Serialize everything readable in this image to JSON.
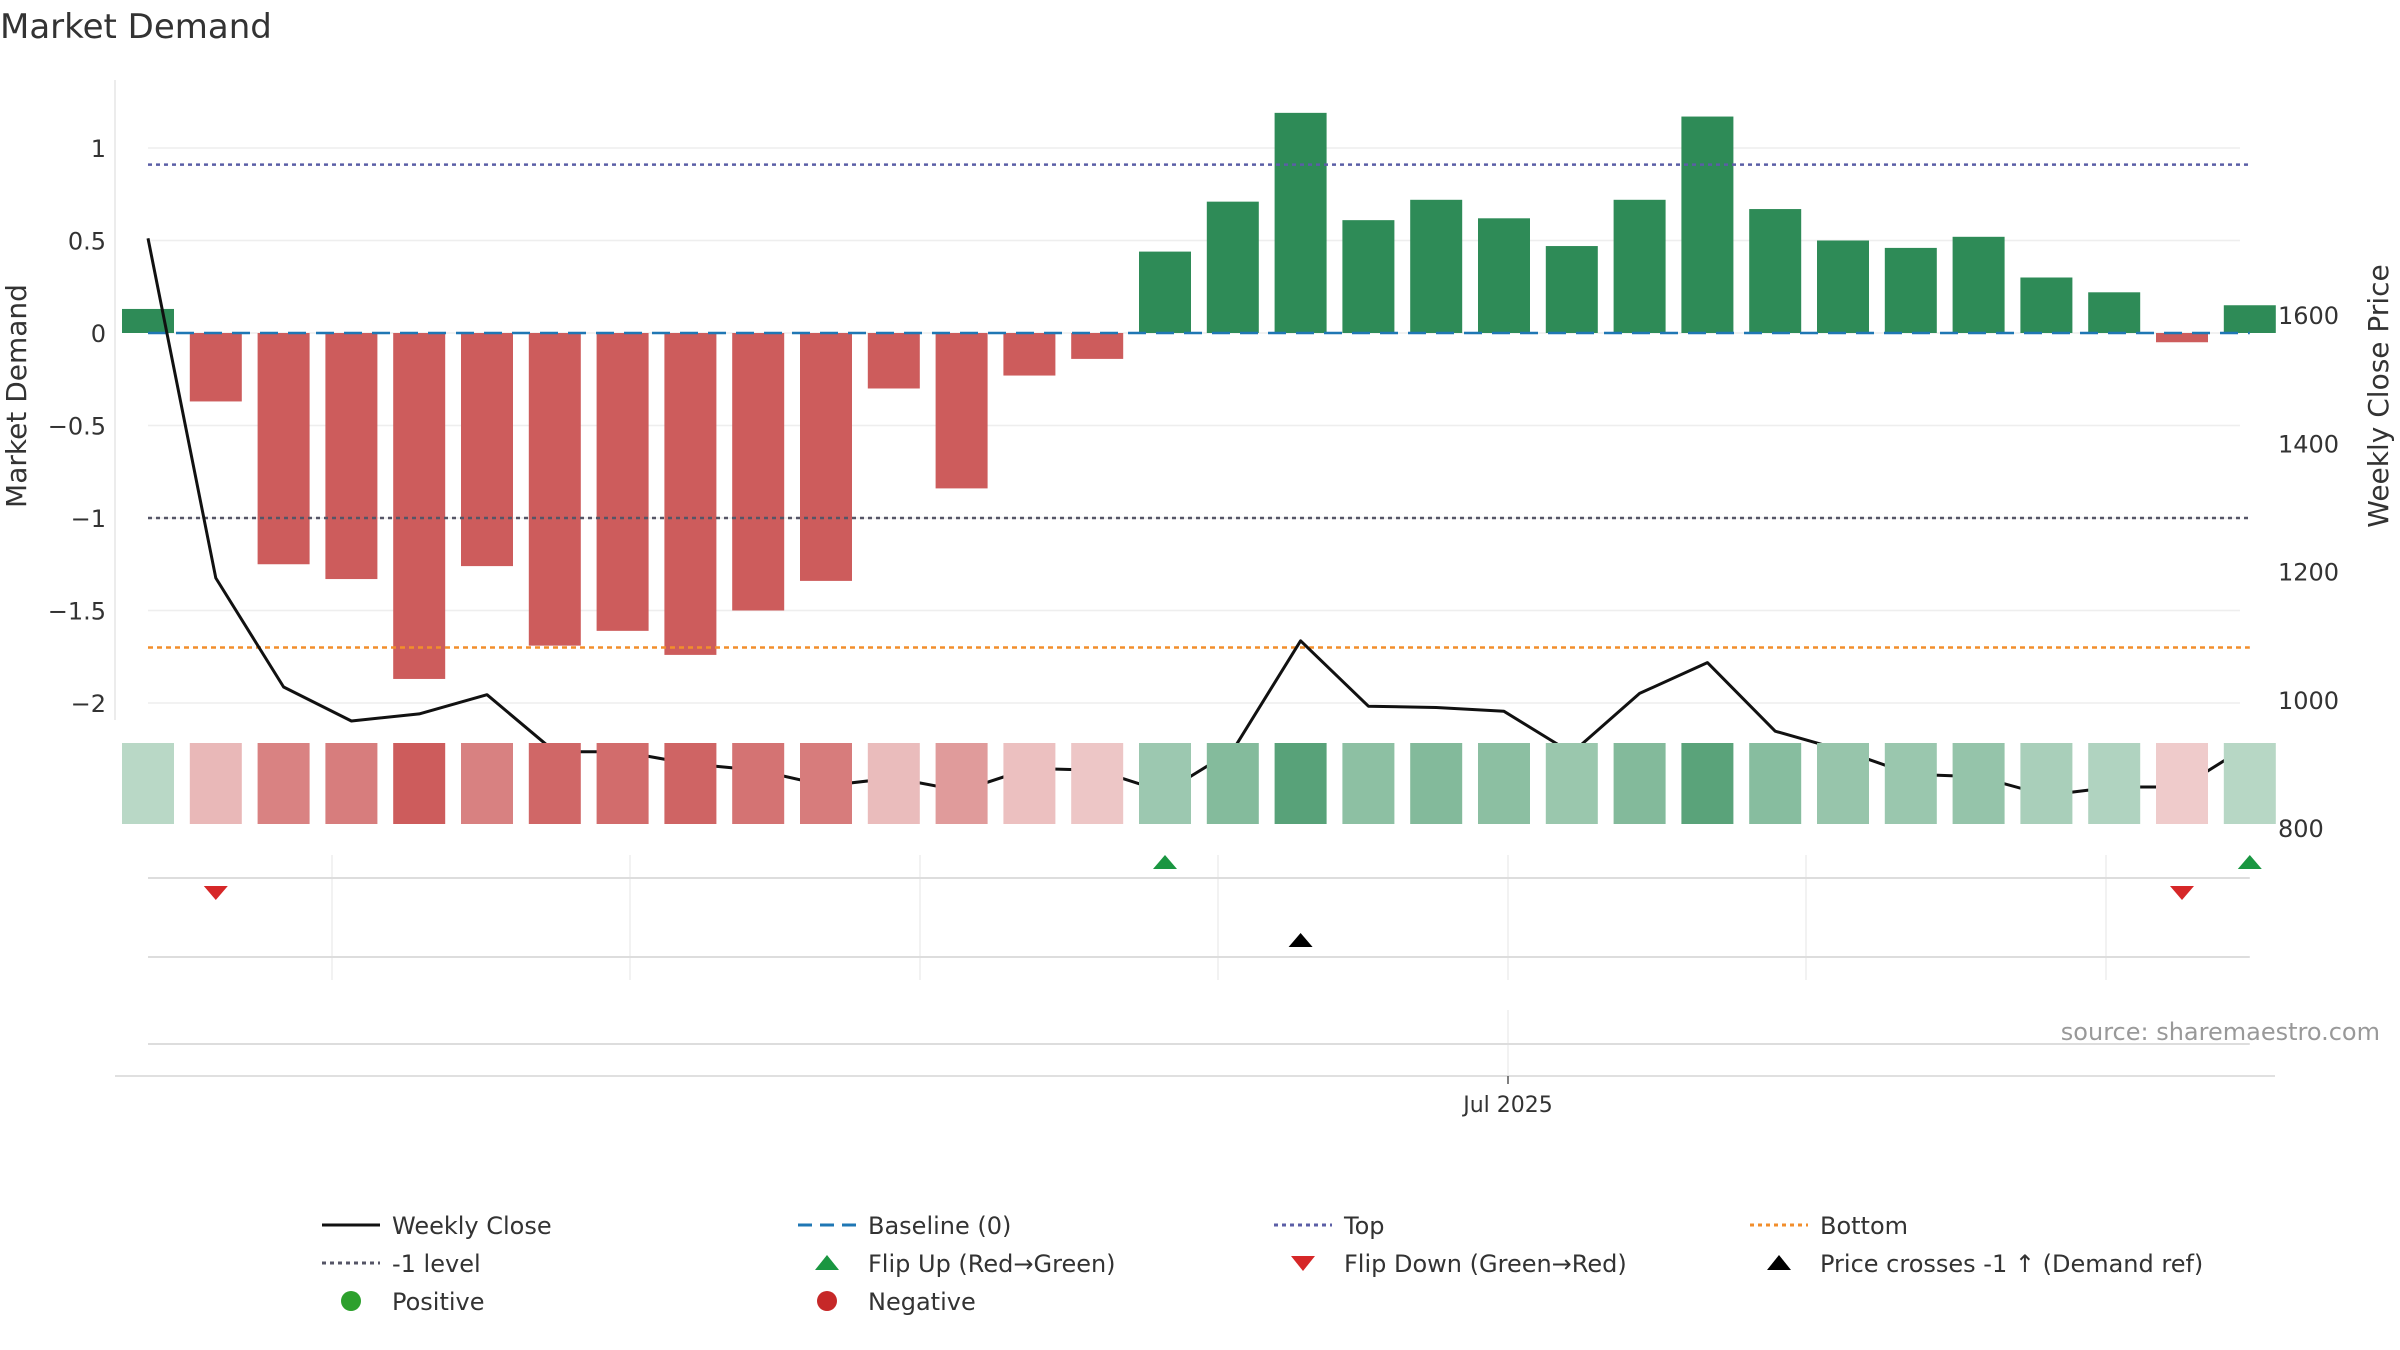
{
  "chart_data": {
    "type": "bar",
    "title": "Market Demand",
    "ylabel_left": "Market Demand",
    "ylabel_right": "Weekly Close Price",
    "yticks_left": [
      1,
      0.5,
      0,
      -0.5,
      -1,
      -1.5,
      -2
    ],
    "yticks_left_labels": [
      "1",
      "0.5",
      "0",
      "−0.5",
      "−1",
      "−1.5",
      "−2"
    ],
    "yticks_right": [
      1600,
      1400,
      1200,
      1000,
      800
    ],
    "yticks_right_labels": [
      "1600",
      "1400",
      "1200",
      "1000",
      "800"
    ],
    "ylim_left": [
      -2.0,
      1.2
    ],
    "ylim_right": [
      800,
      1800
    ],
    "xtick_label": "Jul 2025",
    "xtick_index": 20,
    "demand": [
      0.13,
      -0.37,
      -1.25,
      -1.33,
      -1.87,
      -1.26,
      -1.69,
      -1.61,
      -1.74,
      -1.5,
      -1.34,
      -0.3,
      -0.84,
      -0.23,
      -0.14,
      0.44,
      0.71,
      1.19,
      0.61,
      0.72,
      0.62,
      0.47,
      0.72,
      1.17,
      0.67,
      0.5,
      0.46,
      0.52,
      0.3,
      0.22,
      -0.05,
      0.15
    ],
    "weekly_close": [
      1720,
      1190,
      1020,
      967,
      978,
      1008,
      919,
      919,
      900,
      890,
      866,
      878,
      858,
      893,
      890,
      856,
      921,
      1092,
      990,
      988,
      982,
      917,
      1010,
      1058,
      951,
      921,
      884,
      880,
      851,
      864,
      864,
      930
    ],
    "baseline": 0,
    "top": 0.91,
    "minus_one_level": -1,
    "bottom": -1.7,
    "flip_up_indices": [
      15,
      31
    ],
    "flip_down_indices": [
      1,
      30
    ],
    "price_cross_indices": [
      17
    ],
    "colors": {
      "positive_bar": "#2e8b57",
      "negative_bar": "#cd5c5c",
      "weekly_close": "#111111",
      "baseline": "#1f77b4",
      "top": "#5b5ea6",
      "minus_one": "#555566",
      "bottom": "#f28e2b",
      "flip_up": "#1a9641",
      "flip_down": "#d62728",
      "price_cross": "#000000",
      "positive_dot": "#2ca02c",
      "negative_dot": "#c62828"
    },
    "legend": [
      {
        "label": "Weekly Close",
        "kind": "line-solid",
        "color": "#111111"
      },
      {
        "label": "Baseline (0)",
        "kind": "line-dash",
        "color": "#1f77b4"
      },
      {
        "label": "Top",
        "kind": "line-dot",
        "color": "#5b5ea6"
      },
      {
        "label": "Bottom",
        "kind": "line-dot",
        "color": "#f28e2b"
      },
      {
        "label": "-1 level",
        "kind": "line-dot",
        "color": "#555566"
      },
      {
        "label": "Flip Up (Red→Green)",
        "kind": "tri-up",
        "color": "#1a9641"
      },
      {
        "label": "Flip Down (Green→Red)",
        "kind": "tri-down",
        "color": "#d62728"
      },
      {
        "label": "Price crosses -1 ↑ (Demand ref)",
        "kind": "tri-up",
        "color": "#000000"
      },
      {
        "label": "Positive",
        "kind": "dot",
        "color": "#2ca02c"
      },
      {
        "label": "Negative",
        "kind": "dot",
        "color": "#c62828"
      }
    ],
    "source": "source: sharemaestro.com"
  }
}
